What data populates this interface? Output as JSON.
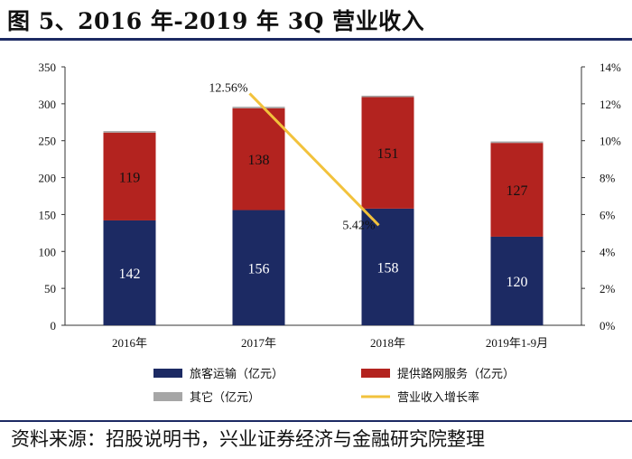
{
  "header": {
    "title": "图 5、2016 年-2019 年 3Q  营业收入"
  },
  "footer": {
    "source": "资料来源：招股说明书，兴业证券经济与金融研究院整理"
  },
  "chart_data": {
    "type": "bar",
    "stacked": true,
    "categories": [
      "2016年",
      "2017年",
      "2018年",
      "2019年1-9月"
    ],
    "series": [
      {
        "name": "旅客运输（亿元）",
        "values": [
          142,
          156,
          158,
          120
        ],
        "color": "#1c2a63",
        "axis": "left",
        "label_color": "#ffffff"
      },
      {
        "name": "提供路网服务（亿元）",
        "values": [
          119,
          138,
          151,
          127
        ],
        "color": "#b3231f",
        "axis": "left",
        "label_color": "#111111"
      },
      {
        "name": "其它（亿元）",
        "values": [
          2,
          2,
          2,
          2
        ],
        "color": "#a6a6a6",
        "axis": "left"
      }
    ],
    "line_series": {
      "name": "营业收入增长率",
      "type": "line",
      "axis": "right",
      "color": "#f2c23c",
      "points": [
        {
          "category": "2017年",
          "value": 12.56,
          "label": "12.56%"
        },
        {
          "category": "2018年",
          "value": 5.42,
          "label": "5.42%"
        }
      ]
    },
    "y_left": {
      "min": 0,
      "max": 350,
      "ticks": [
        "0",
        "50",
        "100",
        "150",
        "200",
        "250",
        "300",
        "350"
      ]
    },
    "y_right": {
      "min": 0,
      "max": 14,
      "ticks": [
        "0%",
        "2%",
        "4%",
        "6%",
        "8%",
        "10%",
        "12%",
        "14%"
      ]
    },
    "legend": {
      "position": "bottom",
      "items": [
        "旅客运输（亿元）",
        "提供路网服务（亿元）",
        "其它（亿元）",
        "营业收入增长率"
      ]
    },
    "grid": false
  }
}
